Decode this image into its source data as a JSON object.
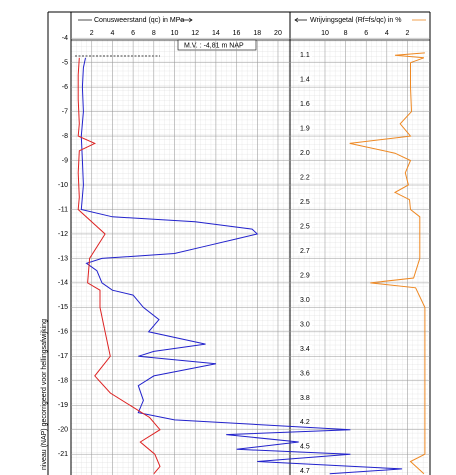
{
  "chart_data": {
    "type": "line",
    "ylabel": "niveau (NAP) gecorrigeerd voor hellingsafwijking",
    "xlabel": "Conusweerstand (qc) in MPa",
    "x2label": "Wrijvingsgetal (Rf=fs/qc) in %",
    "mv_label": "M.V. :   -4,81  m NAP",
    "ylim": [
      -2.93,
      -21.85
    ],
    "yticks": [
      -4,
      -5,
      -6,
      -7,
      -8,
      -9,
      -10,
      -11,
      -12,
      -13,
      -14,
      -15,
      -16,
      -17,
      -18,
      -19,
      -20,
      -21
    ],
    "xlim": [
      0,
      34.5
    ],
    "xticks": [
      2,
      4,
      6,
      8,
      10,
      12,
      14,
      16,
      18,
      20
    ],
    "x2lim": [
      13.4,
      0
    ],
    "x2ticks": [
      10,
      8,
      6,
      4,
      2
    ],
    "grid": true,
    "annotations": [
      {
        "depth": -4.7,
        "label": "1.1"
      },
      {
        "depth": -5.7,
        "label": "1.4"
      },
      {
        "depth": -6.7,
        "label": "1.6"
      },
      {
        "depth": -7.7,
        "label": "1.9"
      },
      {
        "depth": -8.7,
        "label": "2.0"
      },
      {
        "depth": -9.7,
        "label": "2.2"
      },
      {
        "depth": -10.7,
        "label": "2.5"
      },
      {
        "depth": -11.7,
        "label": "2.5"
      },
      {
        "depth": -12.7,
        "label": "2.7"
      },
      {
        "depth": -13.7,
        "label": "2.9"
      },
      {
        "depth": -14.7,
        "label": "3.0"
      },
      {
        "depth": -15.7,
        "label": "3.0"
      },
      {
        "depth": -16.7,
        "label": "3.4"
      },
      {
        "depth": -17.7,
        "label": "3.6"
      },
      {
        "depth": -18.7,
        "label": "3.8"
      },
      {
        "depth": -19.7,
        "label": "4.2"
      },
      {
        "depth": -20.7,
        "label": "4.5"
      },
      {
        "depth": -21.7,
        "label": "4.7"
      }
    ],
    "series": [
      {
        "name": "Conusweerstand (qc) in MPa",
        "color": "#2222cc",
        "axis": "x",
        "depth": [
          -4.8,
          -5.2,
          -6,
          -7,
          -8,
          -9,
          -10,
          -11,
          -11.3,
          -11.5,
          -11.8,
          -12,
          -12.2,
          -12.5,
          -12.8,
          -13,
          -13.2,
          -13.5,
          -14,
          -14.3,
          -14.5,
          -15,
          -15.5,
          -16,
          -16.5,
          -16.8,
          -17,
          -17.3,
          -17.8,
          -18.2,
          -18.8,
          -19.3,
          -19.6,
          -20,
          -20.2,
          -20.5,
          -20.8,
          -21,
          -21.3,
          -21.6,
          -21.8
        ],
        "values": [
          1.4,
          1.2,
          1.1,
          1.2,
          1.0,
          1.1,
          1.2,
          1.0,
          4,
          12,
          17.5,
          18,
          16,
          13,
          10,
          3,
          1.5,
          2.5,
          3,
          4,
          6,
          7,
          8.5,
          7.5,
          13,
          8,
          6.5,
          14,
          8,
          6.5,
          7,
          6.5,
          10,
          27,
          15,
          22,
          16,
          27,
          18,
          32,
          25
        ]
      },
      {
        "color": "#dd2222",
        "axis": "x",
        "depth": [
          -4.8,
          -5.5,
          -6.5,
          -7.5,
          -8,
          -8.3,
          -8.6,
          -9.5,
          -10.5,
          -11,
          -12,
          -13,
          -14,
          -14.3,
          -15,
          -16,
          -17,
          -17.8,
          -18.5,
          -19,
          -19.5,
          -20,
          -20.5,
          -21,
          -21.5,
          -21.8
        ],
        "values": [
          0.8,
          0.7,
          0.7,
          0.8,
          0.7,
          2.3,
          0.8,
          0.7,
          0.8,
          0.7,
          3.3,
          1.8,
          1.6,
          2.8,
          2.8,
          3.3,
          3.8,
          2.3,
          3.8,
          5.7,
          7.6,
          8.6,
          6.7,
          8.1,
          8.6,
          8.0
        ]
      },
      {
        "name": "Wrijvingsgetal (Rf=fs/qc) in %",
        "color": "#ee8822",
        "axis": "x2",
        "depth": [
          -4.6,
          -4.7,
          -4.8,
          -5,
          -6,
          -7,
          -7.5,
          -8,
          -8.3,
          -8.7,
          -9,
          -9.5,
          -10,
          -10.3,
          -10.6,
          -11,
          -11.3,
          -12,
          -13,
          -13.8,
          -14,
          -14.2,
          -15,
          -16,
          -17,
          -18,
          -19,
          -20,
          -21,
          -21.3,
          -21.8
        ],
        "values": [
          0.3,
          3.2,
          0.4,
          1.7,
          1.7,
          1.6,
          2.7,
          1.7,
          7.6,
          3.2,
          1.7,
          2.2,
          1.9,
          3.2,
          1.8,
          1.7,
          0.8,
          0.8,
          0.8,
          1.4,
          5.6,
          1.2,
          0.3,
          0.3,
          0.3,
          0.3,
          0.3,
          0.3,
          0.3,
          1.7,
          0.4
        ]
      }
    ]
  }
}
